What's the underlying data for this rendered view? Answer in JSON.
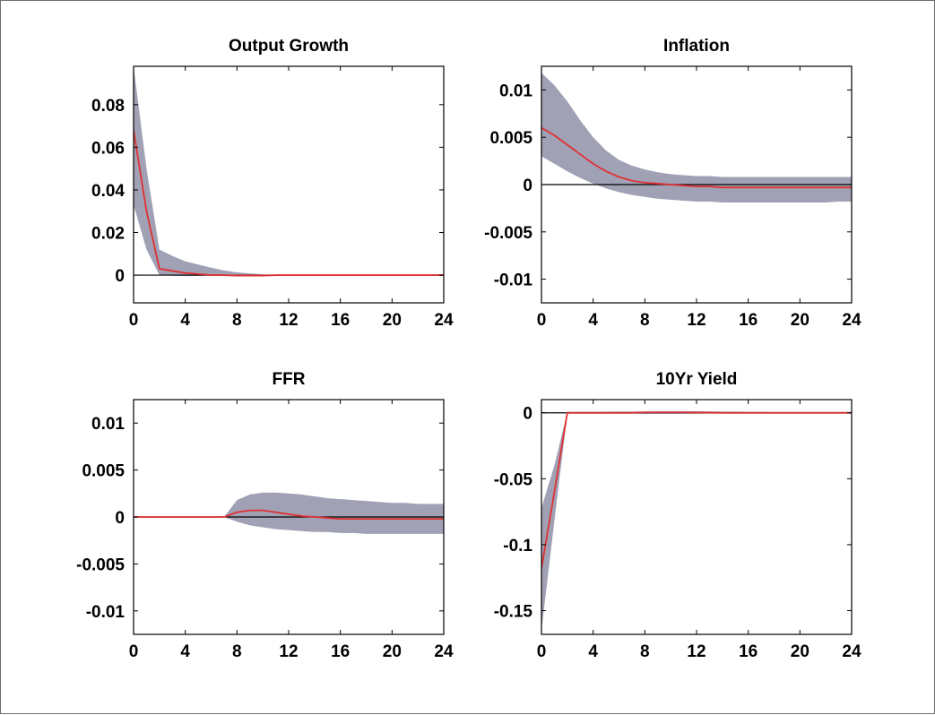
{
  "figure": {
    "background": "#ffffff",
    "frame_color": "#6e6e6e"
  },
  "colors": {
    "median": "#e03030",
    "band": "#a1a1b6",
    "zero_line": "#000000",
    "axes": "#000000"
  },
  "chart_data": [
    {
      "type": "line",
      "title": "Output Growth",
      "xlabel": "",
      "ylabel": "",
      "xlim": [
        0,
        24
      ],
      "ylim": [
        -0.013,
        0.098
      ],
      "xticks": [
        0,
        4,
        8,
        12,
        16,
        20,
        24
      ],
      "xtick_labels": [
        "0",
        "4",
        "8",
        "12",
        "16",
        "20",
        "24"
      ],
      "yticks": [
        0,
        0.02,
        0.04,
        0.06,
        0.08
      ],
      "ytick_labels": [
        "0",
        "0.02",
        "0.04",
        "0.06",
        "0.08"
      ],
      "zero_line": true,
      "x": [
        0,
        1,
        2,
        3,
        4,
        5,
        6,
        7,
        8,
        9,
        10,
        11,
        12,
        13,
        14,
        15,
        16,
        17,
        18,
        19,
        20,
        21,
        22,
        23,
        24
      ],
      "series": [
        {
          "role": "median",
          "values": [
            0.068,
            0.03,
            0.003,
            0.002,
            0.001,
            0.0005,
            0.0,
            0.0,
            -0.0002,
            -0.0002,
            -0.0002,
            0,
            0,
            0,
            0,
            0,
            0,
            0,
            0,
            0,
            0,
            0,
            0,
            0,
            0
          ]
        },
        {
          "role": "upper",
          "values": [
            0.098,
            0.05,
            0.012,
            0.009,
            0.0065,
            0.005,
            0.0035,
            0.0022,
            0.0013,
            0.0008,
            0.0004,
            0.0002,
            0.0001,
            0,
            0,
            0,
            0,
            0,
            0,
            0,
            0,
            0,
            0,
            0,
            0
          ]
        },
        {
          "role": "lower",
          "values": [
            0.033,
            0.012,
            0.0,
            -0.0003,
            -0.0004,
            -0.0004,
            -0.0004,
            -0.0004,
            -0.0004,
            -0.0003,
            -0.0002,
            -0.0001,
            0,
            0,
            0,
            0,
            0,
            0,
            0,
            0,
            0,
            0,
            0,
            0,
            0
          ]
        }
      ]
    },
    {
      "type": "line",
      "title": "Inflation",
      "xlabel": "",
      "ylabel": "",
      "xlim": [
        0,
        24
      ],
      "ylim": [
        -0.0125,
        0.0125
      ],
      "xticks": [
        0,
        4,
        8,
        12,
        16,
        20,
        24
      ],
      "xtick_labels": [
        "0",
        "4",
        "8",
        "12",
        "16",
        "20",
        "24"
      ],
      "yticks": [
        -0.01,
        -0.005,
        0,
        0.005,
        0.01
      ],
      "ytick_labels": [
        "-0.01",
        "-0.005",
        "0",
        "0.005",
        "0.01"
      ],
      "zero_line": true,
      "x": [
        0,
        1,
        2,
        3,
        4,
        5,
        6,
        7,
        8,
        9,
        10,
        11,
        12,
        13,
        14,
        15,
        16,
        17,
        18,
        19,
        20,
        21,
        22,
        23,
        24
      ],
      "series": [
        {
          "role": "median",
          "values": [
            0.006,
            0.0052,
            0.0042,
            0.0032,
            0.0022,
            0.0014,
            0.0008,
            0.0004,
            0.0002,
            0.0001,
            0.0,
            -0.0001,
            -0.0002,
            -0.0002,
            -0.0003,
            -0.0003,
            -0.0003,
            -0.0003,
            -0.0003,
            -0.0003,
            -0.0003,
            -0.0003,
            -0.0003,
            -0.0003,
            -0.0003
          ]
        },
        {
          "role": "upper",
          "values": [
            0.0118,
            0.0105,
            0.0088,
            0.0068,
            0.005,
            0.0036,
            0.0026,
            0.002,
            0.0016,
            0.0013,
            0.0011,
            0.001,
            0.0009,
            0.0009,
            0.0008,
            0.0008,
            0.0008,
            0.0008,
            0.0008,
            0.0008,
            0.0008,
            0.0008,
            0.0008,
            0.0008,
            0.0008
          ]
        },
        {
          "role": "lower",
          "values": [
            0.003,
            0.0022,
            0.0014,
            0.0007,
            0.0001,
            -0.0004,
            -0.0008,
            -0.0011,
            -0.0013,
            -0.0015,
            -0.0016,
            -0.0017,
            -0.0018,
            -0.0018,
            -0.0019,
            -0.0019,
            -0.0019,
            -0.0019,
            -0.0019,
            -0.0019,
            -0.0019,
            -0.0019,
            -0.0019,
            -0.0018,
            -0.0018
          ]
        }
      ]
    },
    {
      "type": "line",
      "title": "FFR",
      "xlabel": "",
      "ylabel": "",
      "xlim": [
        0,
        24
      ],
      "ylim": [
        -0.0125,
        0.0125
      ],
      "xticks": [
        0,
        4,
        8,
        12,
        16,
        20,
        24
      ],
      "xtick_labels": [
        "0",
        "4",
        "8",
        "12",
        "16",
        "20",
        "24"
      ],
      "yticks": [
        -0.01,
        -0.005,
        0,
        0.005,
        0.01
      ],
      "ytick_labels": [
        "-0.01",
        "-0.005",
        "0",
        "0.005",
        "0.01"
      ],
      "zero_line": true,
      "x": [
        0,
        1,
        2,
        3,
        4,
        5,
        6,
        7,
        8,
        9,
        10,
        11,
        12,
        13,
        14,
        15,
        16,
        17,
        18,
        19,
        20,
        21,
        22,
        23,
        24
      ],
      "series": [
        {
          "role": "median",
          "values": [
            0,
            0,
            0,
            0,
            0,
            0,
            0,
            0,
            0.0005,
            0.0007,
            0.0007,
            0.0005,
            0.0003,
            0.0001,
            0.0,
            -0.0001,
            -0.0002,
            -0.0002,
            -0.0002,
            -0.0002,
            -0.0002,
            -0.0002,
            -0.0002,
            -0.0002,
            -0.0002
          ]
        },
        {
          "role": "upper",
          "values": [
            0,
            0,
            0,
            0,
            0,
            0,
            0,
            0,
            0.0018,
            0.0024,
            0.0026,
            0.0026,
            0.0025,
            0.0024,
            0.0022,
            0.002,
            0.0019,
            0.0018,
            0.0017,
            0.0016,
            0.0015,
            0.0015,
            0.0014,
            0.0014,
            0.0014
          ]
        },
        {
          "role": "lower",
          "values": [
            0,
            0,
            0,
            0,
            0,
            0,
            0,
            0,
            -0.0005,
            -0.0009,
            -0.0011,
            -0.0013,
            -0.0014,
            -0.0015,
            -0.0016,
            -0.0016,
            -0.0017,
            -0.0017,
            -0.0018,
            -0.0018,
            -0.0018,
            -0.0018,
            -0.0018,
            -0.0018,
            -0.0018
          ]
        }
      ]
    },
    {
      "type": "line",
      "title": "10Yr Yield",
      "xlabel": "",
      "ylabel": "",
      "xlim": [
        0,
        24
      ],
      "ylim": [
        -0.168,
        0.01
      ],
      "xticks": [
        0,
        4,
        8,
        12,
        16,
        20,
        24
      ],
      "xtick_labels": [
        "0",
        "4",
        "8",
        "12",
        "16",
        "20",
        "24"
      ],
      "yticks": [
        -0.15,
        -0.1,
        -0.05,
        0
      ],
      "ytick_labels": [
        "-0.15",
        "-0.1",
        "-0.05",
        "0"
      ],
      "zero_line": true,
      "x": [
        0,
        1,
        2,
        3,
        4,
        5,
        6,
        7,
        8,
        9,
        10,
        11,
        12,
        13,
        14,
        15,
        16,
        17,
        18,
        19,
        20,
        21,
        22,
        23,
        24
      ],
      "series": [
        {
          "role": "median",
          "values": [
            -0.118,
            -0.06,
            0.0,
            0.0,
            0.0,
            0.0,
            0.0,
            0.0,
            0.0003,
            0.0003,
            0.0003,
            0.0003,
            0.0002,
            0.0001,
            0.0,
            0.0,
            0.0,
            0.0,
            0.0,
            0.0,
            0.0,
            0.0,
            0.0,
            0.0,
            0.0
          ]
        },
        {
          "role": "upper",
          "values": [
            -0.072,
            -0.04,
            0.0008,
            0.0008,
            0.0008,
            0.0009,
            0.001,
            0.001,
            0.0011,
            0.0012,
            0.0012,
            0.0012,
            0.0012,
            0.0011,
            0.001,
            0.0009,
            0.0008,
            0.0008,
            0.0007,
            0.0007,
            0.0007,
            0.0007,
            0.0007,
            0.0007,
            0.0007
          ]
        },
        {
          "role": "lower",
          "values": [
            -0.165,
            -0.082,
            -0.0008,
            -0.0008,
            -0.0008,
            -0.0008,
            -0.0008,
            -0.0008,
            -0.0007,
            -0.0007,
            -0.0007,
            -0.0007,
            -0.0007,
            -0.0007,
            -0.0007,
            -0.0007,
            -0.0007,
            -0.0007,
            -0.0007,
            -0.0007,
            -0.0007,
            -0.0007,
            -0.0007,
            -0.0007,
            -0.0007
          ]
        }
      ]
    }
  ]
}
